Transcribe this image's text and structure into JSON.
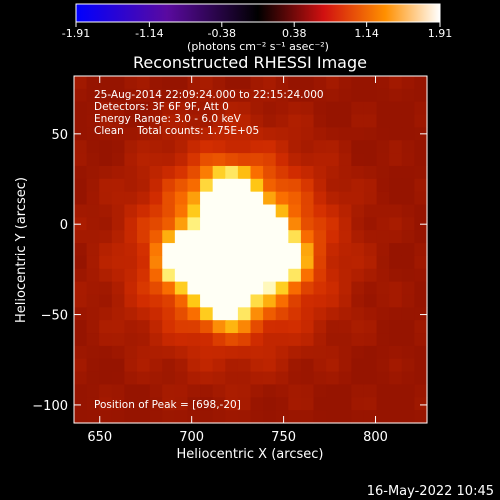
{
  "colorbar": {
    "ticks": [
      "-1.91",
      "-1.14",
      "-0.38",
      "0.38",
      "1.14",
      "1.91"
    ],
    "unit_label": "(photons cm⁻² s⁻¹ asec⁻²)",
    "range": [
      -1.91,
      1.91
    ]
  },
  "title": "Reconstructed RHESSI Image",
  "info": {
    "line1": "25-Aug-2014 22:09:24.000 to 22:15:24.000",
    "line2": "Detectors: 3F 6F 9F, Att 0",
    "line3": "Energy Range: 3.0 - 6.0 keV",
    "line4": "Clean    Total counts: 1.75E+05"
  },
  "peak_text": "Position of Peak = [698,-20]",
  "footer_date": "16-May-2022 10:45",
  "chart_data": {
    "type": "heatmap",
    "title": "Reconstructed RHESSI Image",
    "xlabel": "Heliocentric X (arcsec)",
    "ylabel": "Heliocentric Y (arcsec)",
    "xlim": [
      636,
      828
    ],
    "ylim": [
      -110,
      82
    ],
    "xticks": [
      650,
      700,
      750,
      800
    ],
    "yticks": [
      50,
      0,
      -50,
      -100
    ],
    "colormap": "hot-red-yellow-white",
    "sources": [
      {
        "x": 698,
        "y": -20,
        "relative_intensity": 1.0
      },
      {
        "x": 720,
        "y": 16,
        "relative_intensity": 0.95
      },
      {
        "x": 733,
        "y": -7,
        "relative_intensity": 0.95
      },
      {
        "x": 746,
        "y": -19,
        "relative_intensity": 0.85
      },
      {
        "x": 719,
        "y": -43,
        "relative_intensity": 0.7
      }
    ],
    "peak": [
      698,
      -20
    ]
  }
}
